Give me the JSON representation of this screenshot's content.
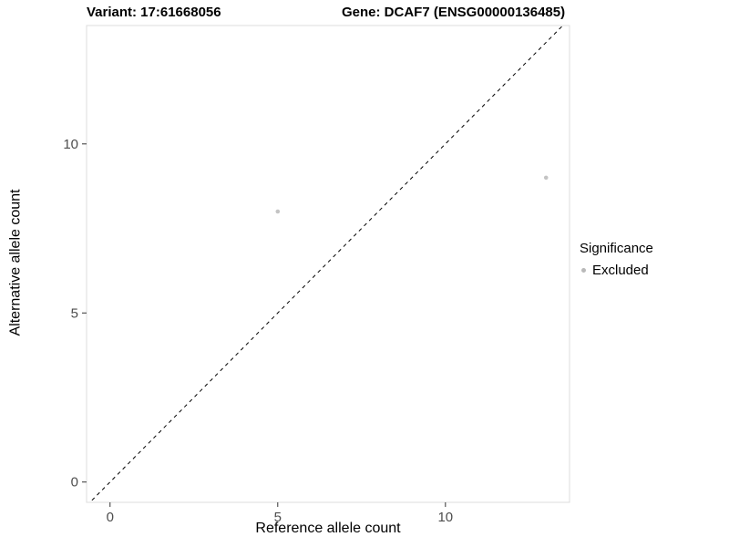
{
  "chart_data": {
    "type": "scatter",
    "title_left": "Variant: 17:61668056",
    "title_right": "Gene: DCAF7 (ENSG00000136485)",
    "xlabel": "Reference allele count",
    "ylabel": "Alternative allele count",
    "xlim": [
      -0.7,
      13.7
    ],
    "ylim": [
      -0.6,
      13.5
    ],
    "xticks": [
      0,
      5,
      10
    ],
    "yticks": [
      0,
      5,
      10
    ],
    "grid": false,
    "identity_line": {
      "style": "dashed",
      "color": "#000000",
      "from": [
        -1,
        -1
      ],
      "to": [
        14.5,
        14.5
      ]
    },
    "series": [
      {
        "name": "Excluded",
        "color": "#c4c4c4",
        "points": [
          [
            5,
            8
          ],
          [
            13,
            9
          ]
        ]
      }
    ],
    "legend": {
      "title": "Significance",
      "position": "right",
      "items": [
        {
          "label": "Excluded",
          "color": "#b9b9b9"
        }
      ]
    }
  },
  "colors": {
    "background": "#ffffff",
    "panel_border": "#dcdcdc",
    "tick": "#333333",
    "tick_label": "#4d4d4d",
    "title": "#000000"
  }
}
